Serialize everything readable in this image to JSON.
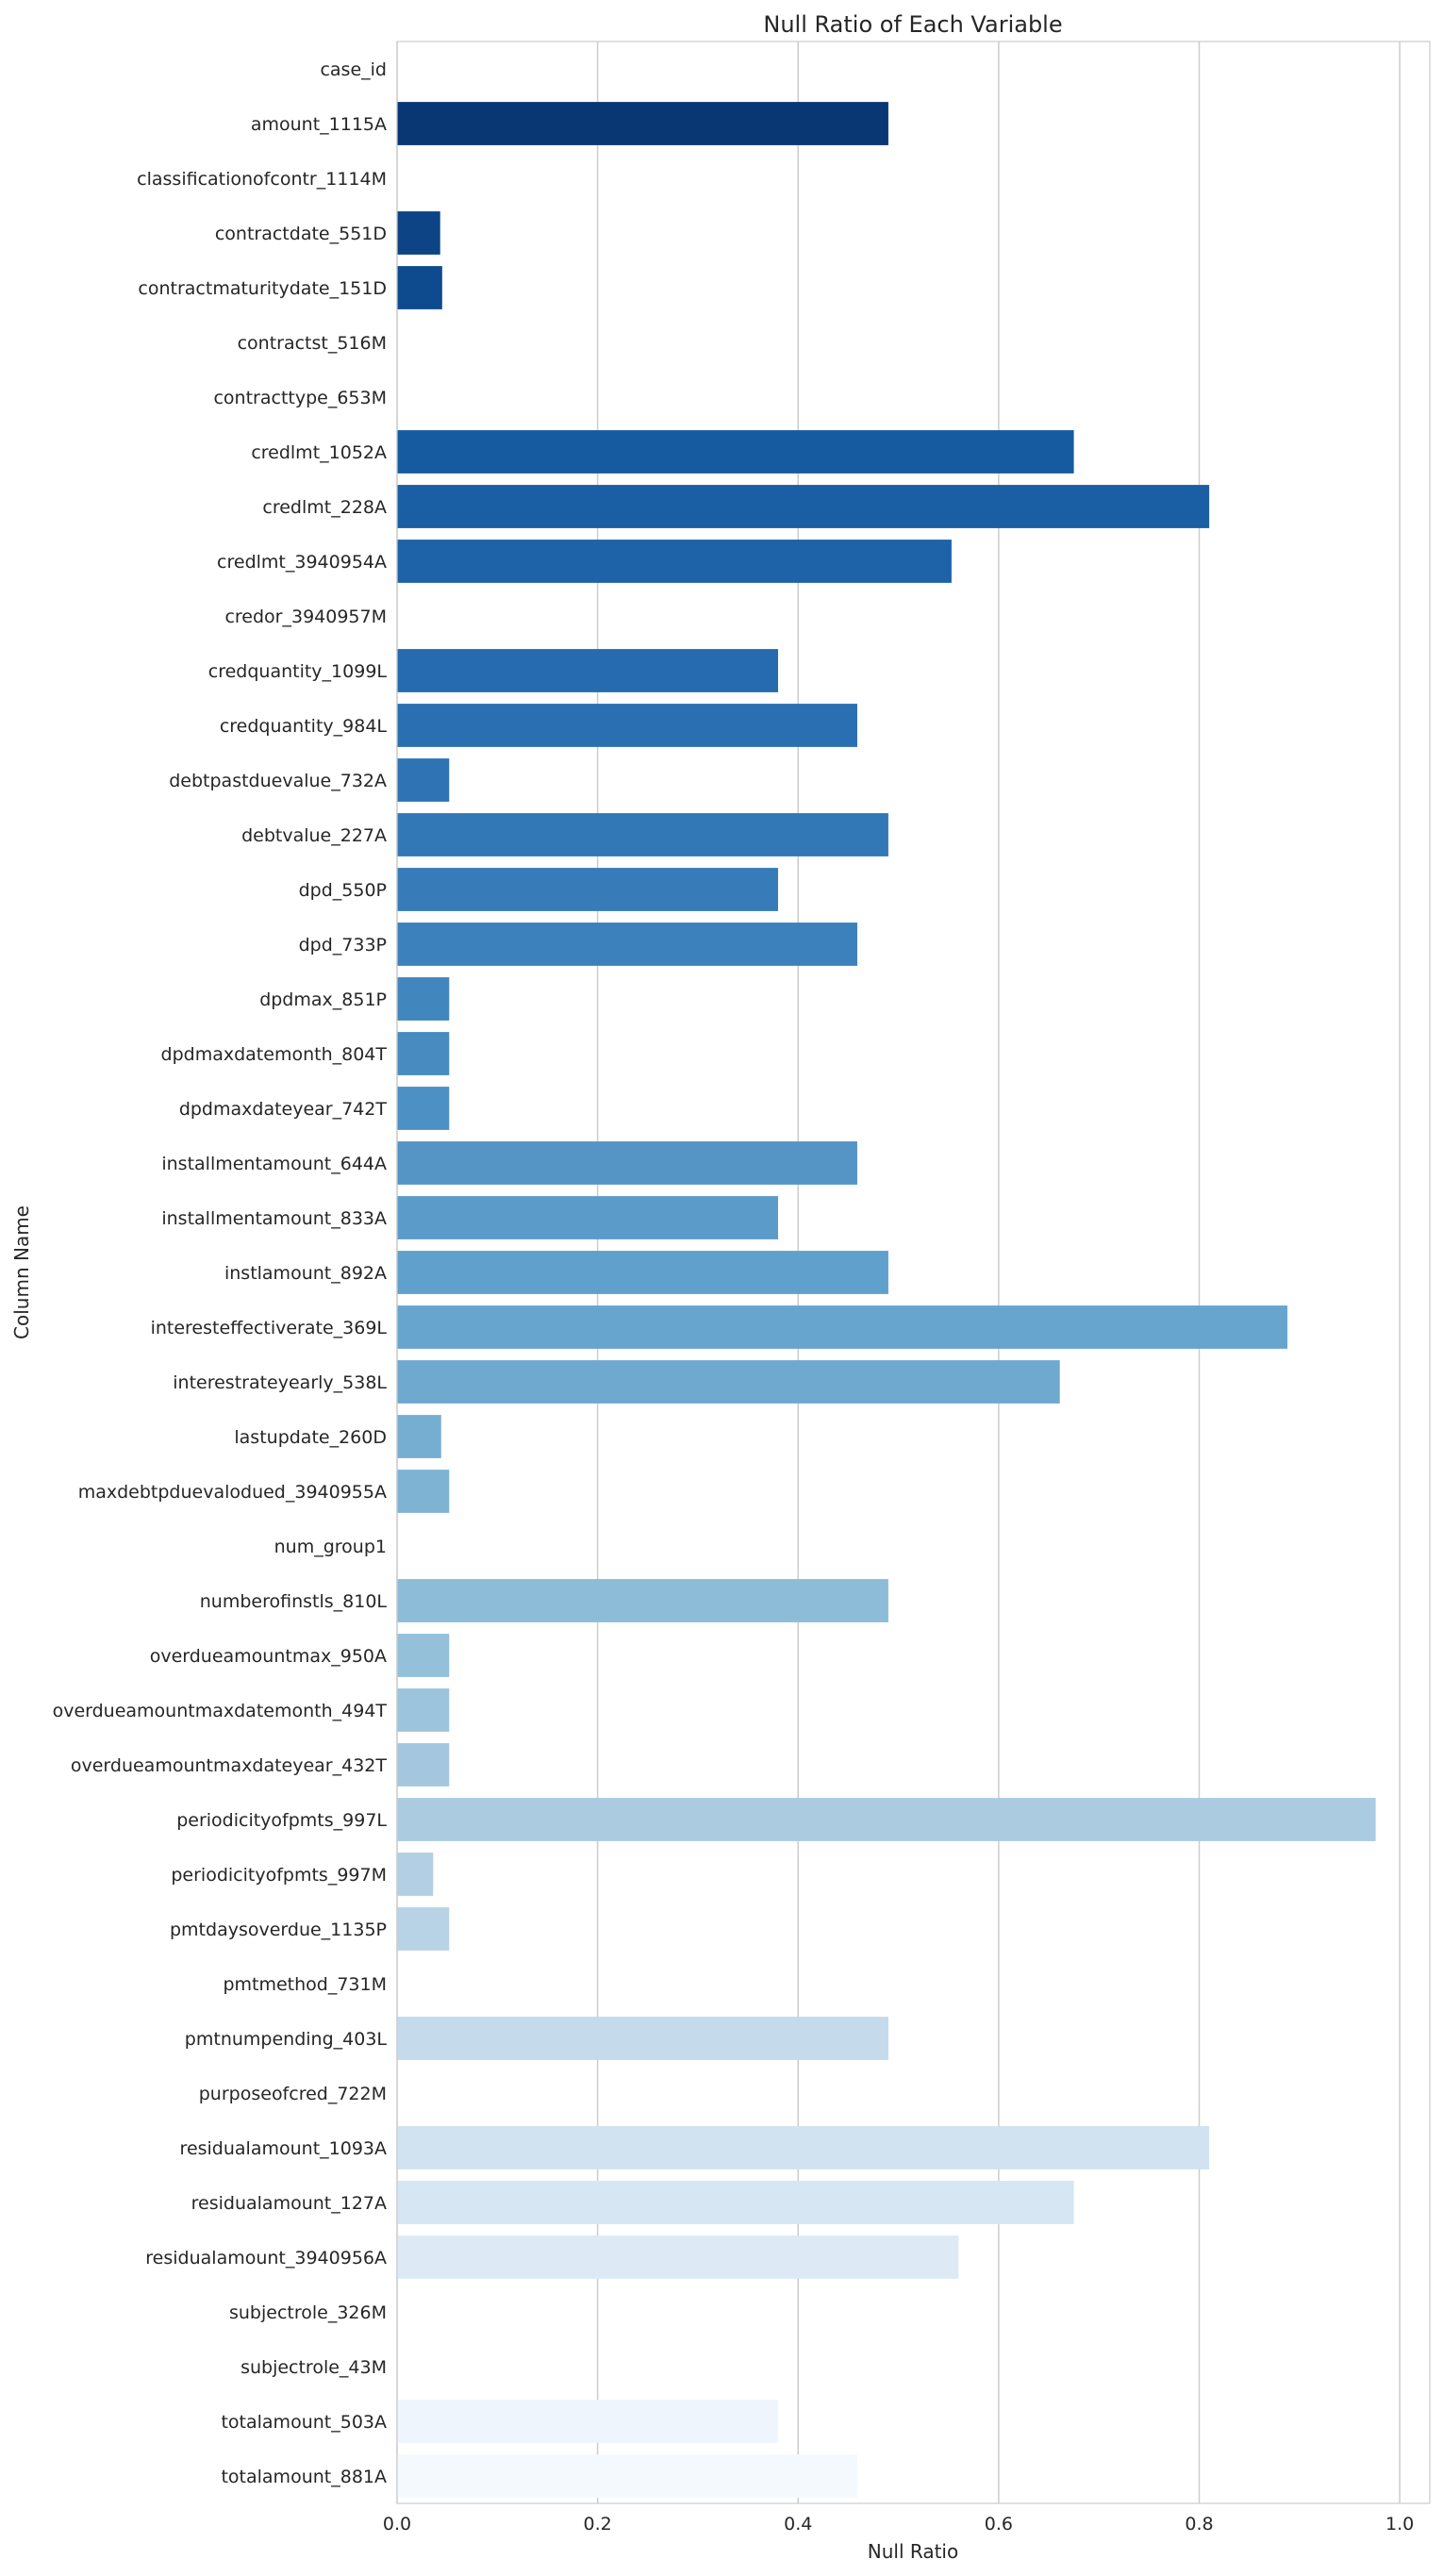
{
  "chart_data": {
    "type": "bar",
    "orientation": "horizontal",
    "title": "Null Ratio of Each Variable",
    "xlabel": "Null Ratio",
    "ylabel": "Column Name",
    "xlim": [
      0,
      1.03
    ],
    "xticks": [
      0.0,
      0.2,
      0.4,
      0.6,
      0.8,
      1.0
    ],
    "xtick_labels": [
      "0.0",
      "0.2",
      "0.4",
      "0.6",
      "0.8",
      "1.0"
    ],
    "grid": "vertical",
    "palette": "Blues_r",
    "categories": [
      "case_id",
      "amount_1115A",
      "classificationofcontr_1114M",
      "contractdate_551D",
      "contractmaturitydate_151D",
      "contractst_516M",
      "contracttype_653M",
      "credlmt_1052A",
      "credlmt_228A",
      "credlmt_3940954A",
      "credor_3940957M",
      "credquantity_1099L",
      "credquantity_984L",
      "debtpastduevalue_732A",
      "debtvalue_227A",
      "dpd_550P",
      "dpd_733P",
      "dpdmax_851P",
      "dpdmaxdatemonth_804T",
      "dpdmaxdateyear_742T",
      "installmentamount_644A",
      "installmentamount_833A",
      "instlamount_892A",
      "interesteffectiverate_369L",
      "interestrateyearly_538L",
      "lastupdate_260D",
      "maxdebtpduevalodued_3940955A",
      "num_group1",
      "numberofinstls_810L",
      "overdueamountmax_950A",
      "overdueamountmaxdatemonth_494T",
      "overdueamountmaxdateyear_432T",
      "periodicityofpmts_997L",
      "periodicityofpmts_997M",
      "pmtdaysoverdue_1135P",
      "pmtmethod_731M",
      "pmtnumpending_403L",
      "purposeofcred_722M",
      "residualamount_1093A",
      "residualamount_127A",
      "residualamount_3940956A",
      "subjectrole_326M",
      "subjectrole_43M",
      "totalamount_503A",
      "totalamount_881A"
    ],
    "values": [
      0.0,
      0.49,
      0.0,
      0.043,
      0.045,
      0.0,
      0.0,
      0.675,
      0.81,
      0.553,
      0.0,
      0.38,
      0.459,
      0.052,
      0.49,
      0.38,
      0.459,
      0.052,
      0.052,
      0.052,
      0.459,
      0.38,
      0.49,
      0.888,
      0.661,
      0.044,
      0.052,
      0.0,
      0.49,
      0.052,
      0.052,
      0.052,
      0.976,
      0.036,
      0.052,
      0.0,
      0.49,
      0.0,
      0.81,
      0.675,
      0.56,
      0.0,
      0.0,
      0.38,
      0.459
    ]
  }
}
